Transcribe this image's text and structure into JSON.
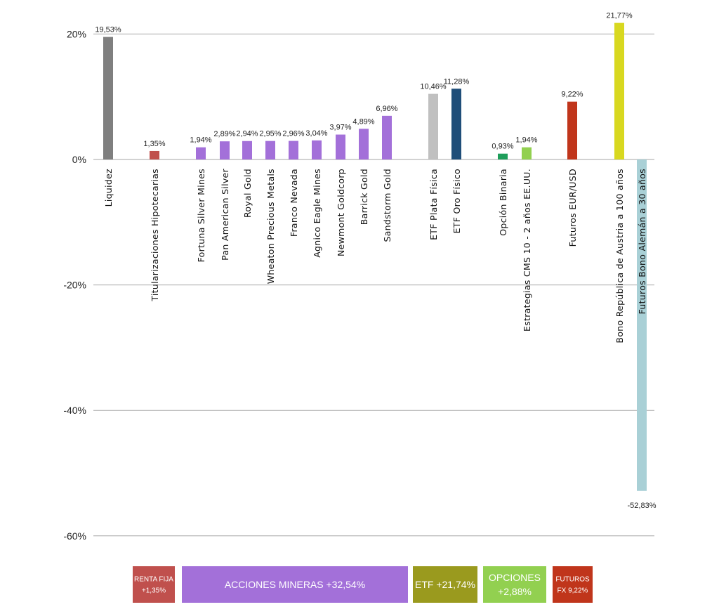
{
  "chart_data": {
    "type": "bar",
    "title": "",
    "xlabel": "",
    "ylabel": "",
    "ylim": [
      -60,
      20
    ],
    "yticks": [
      {
        "value": 20,
        "label": "20%"
      },
      {
        "value": 0,
        "label": "0%"
      },
      {
        "value": -20,
        "label": "-20%"
      },
      {
        "value": -40,
        "label": "-40%"
      },
      {
        "value": -60,
        "label": "-60%"
      }
    ],
    "grid": true,
    "bars": [
      {
        "category": "Liquidez",
        "value": 19.53,
        "label": "19,53%",
        "color": "#7f7f7f",
        "group": "liquidez"
      },
      {
        "category": "Titularizaciones Hipotecarias",
        "value": 1.35,
        "label": "1,35%",
        "color": "#c0504d",
        "group": "renta_fija"
      },
      {
        "category": "Fortuna Silver Mines",
        "value": 1.94,
        "label": "1,94%",
        "color": "#a370d9",
        "group": "acciones_mineras"
      },
      {
        "category": "Pan American Silver",
        "value": 2.89,
        "label": "2,89%",
        "color": "#a370d9",
        "group": "acciones_mineras"
      },
      {
        "category": "Royal Gold",
        "value": 2.94,
        "label": "2,94%",
        "color": "#a370d9",
        "group": "acciones_mineras"
      },
      {
        "category": "Wheaton Precious Metals",
        "value": 2.95,
        "label": "2,95%",
        "color": "#a370d9",
        "group": "acciones_mineras"
      },
      {
        "category": "Franco Nevada",
        "value": 2.96,
        "label": "2,96%",
        "color": "#a370d9",
        "group": "acciones_mineras"
      },
      {
        "category": "Agnico Eagle Mines",
        "value": 3.04,
        "label": "3,04%",
        "color": "#a370d9",
        "group": "acciones_mineras"
      },
      {
        "category": "Newmont Goldcorp",
        "value": 3.97,
        "label": "3,97%",
        "color": "#a370d9",
        "group": "acciones_mineras"
      },
      {
        "category": "Barrick Gold",
        "value": 4.89,
        "label": "4,89%",
        "color": "#a370d9",
        "group": "acciones_mineras"
      },
      {
        "category": "Sandstorm Gold",
        "value": 6.96,
        "label": "6,96%",
        "color": "#a370d9",
        "group": "acciones_mineras"
      },
      {
        "category": "ETF Plata Física",
        "value": 10.46,
        "label": "10,46%",
        "color": "#c0c0c0",
        "group": "etf"
      },
      {
        "category": "ETF Oro Físico",
        "value": 11.28,
        "label": "11,28%",
        "color": "#1f4e79",
        "group": "etf"
      },
      {
        "category": "Opción Binaria",
        "value": 0.93,
        "label": "0,93%",
        "color": "#1e9e5a",
        "group": "opciones"
      },
      {
        "category": "Estrategias CMS 10 - 2 años EE.UU.",
        "value": 1.94,
        "label": "1,94%",
        "color": "#92d050",
        "group": "opciones"
      },
      {
        "category": "Futuros EUR/USD",
        "value": 9.22,
        "label": "9,22%",
        "color": "#c0351b",
        "group": "futuros"
      },
      {
        "category": "Bono República de Austria a 100 años",
        "value": 21.77,
        "label": "21,77%",
        "color": "#d8d820",
        "group": "bonos"
      },
      {
        "category": "Futuros Bono Alemán a 30 años",
        "value": -52.83,
        "label": "-52,83%",
        "color": "#a9d0d6",
        "group": "bonos"
      }
    ],
    "legend": [
      {
        "lines": [
          "RENTA FIJA",
          "+1,35%"
        ],
        "color": "#c0504d"
      },
      {
        "lines": [
          "ACCIONES MINERAS +32,54%"
        ],
        "color": "#a370d9"
      },
      {
        "lines": [
          "ETF +21,74%"
        ],
        "color": "#9a9a1e"
      },
      {
        "lines": [
          "OPCIONES",
          "+2,88%"
        ],
        "color": "#92d050"
      },
      {
        "lines": [
          "FUTUROS",
          "FX 9,22%"
        ],
        "color": "#c0351b"
      }
    ]
  }
}
